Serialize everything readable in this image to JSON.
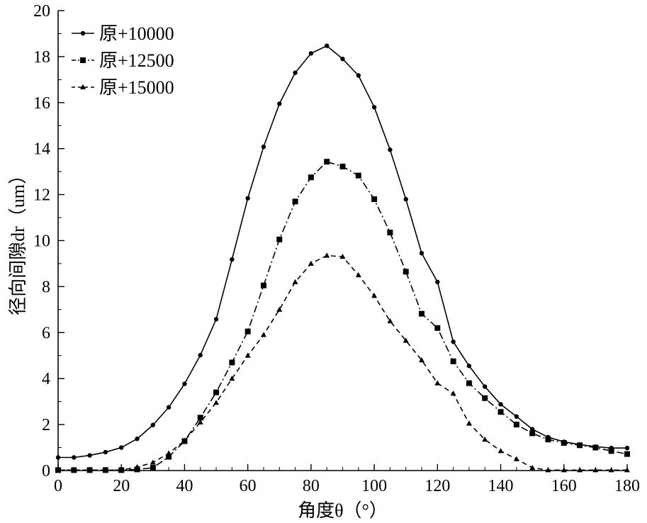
{
  "chart_data": {
    "type": "line",
    "xlabel": "角度θ（°）",
    "ylabel": "径向间隙dr（um）",
    "xlim": [
      0,
      180
    ],
    "ylim": [
      0,
      20
    ],
    "xticks": [
      0,
      20,
      40,
      60,
      80,
      100,
      120,
      140,
      160,
      180
    ],
    "yticks": [
      0,
      2,
      4,
      6,
      8,
      10,
      12,
      14,
      16,
      18,
      20
    ],
    "x": [
      0,
      5,
      10,
      15,
      20,
      25,
      30,
      35,
      40,
      45,
      50,
      55,
      60,
      65,
      70,
      75,
      80,
      85,
      90,
      95,
      100,
      105,
      110,
      115,
      120,
      125,
      130,
      135,
      140,
      145,
      150,
      155,
      160,
      165,
      170,
      175,
      180
    ],
    "legend_position": "top-left",
    "series": [
      {
        "name": "原+10000",
        "marker": "circle",
        "dash": "solid",
        "values": [
          0.57,
          0.57,
          0.66,
          0.8,
          1.0,
          1.38,
          1.98,
          2.75,
          3.77,
          5.02,
          6.58,
          9.18,
          11.84,
          14.08,
          15.95,
          17.3,
          18.14,
          18.47,
          17.9,
          17.18,
          15.8,
          13.95,
          11.8,
          9.45,
          8.2,
          5.6,
          4.55,
          3.65,
          2.88,
          2.35,
          1.8,
          1.45,
          1.25,
          1.13,
          1.04,
          0.98,
          0.98
        ]
      },
      {
        "name": "原+12500",
        "marker": "square",
        "dash": "dashdot",
        "values": [
          0.02,
          0.02,
          0.02,
          0.02,
          0.02,
          0.05,
          0.12,
          0.6,
          1.28,
          2.3,
          3.4,
          4.7,
          6.05,
          8.05,
          10.05,
          11.7,
          12.75,
          13.43,
          13.22,
          12.83,
          11.8,
          10.35,
          8.65,
          6.82,
          6.2,
          4.75,
          3.8,
          3.15,
          2.55,
          2.0,
          1.62,
          1.35,
          1.2,
          1.1,
          1.0,
          0.85,
          0.72
        ]
      },
      {
        "name": "原+15000",
        "marker": "triangle",
        "dash": "dashed",
        "values": [
          0.02,
          0.02,
          0.02,
          0.02,
          0.02,
          0.15,
          0.35,
          0.75,
          1.3,
          2.1,
          2.95,
          4.0,
          5.0,
          5.9,
          7.0,
          8.2,
          9.0,
          9.35,
          9.3,
          8.5,
          7.6,
          6.5,
          5.65,
          4.8,
          3.8,
          3.35,
          2.05,
          1.35,
          0.85,
          0.5,
          0.12,
          0.02,
          0.02,
          0.02,
          0.02,
          0.02,
          0.02
        ]
      }
    ]
  }
}
